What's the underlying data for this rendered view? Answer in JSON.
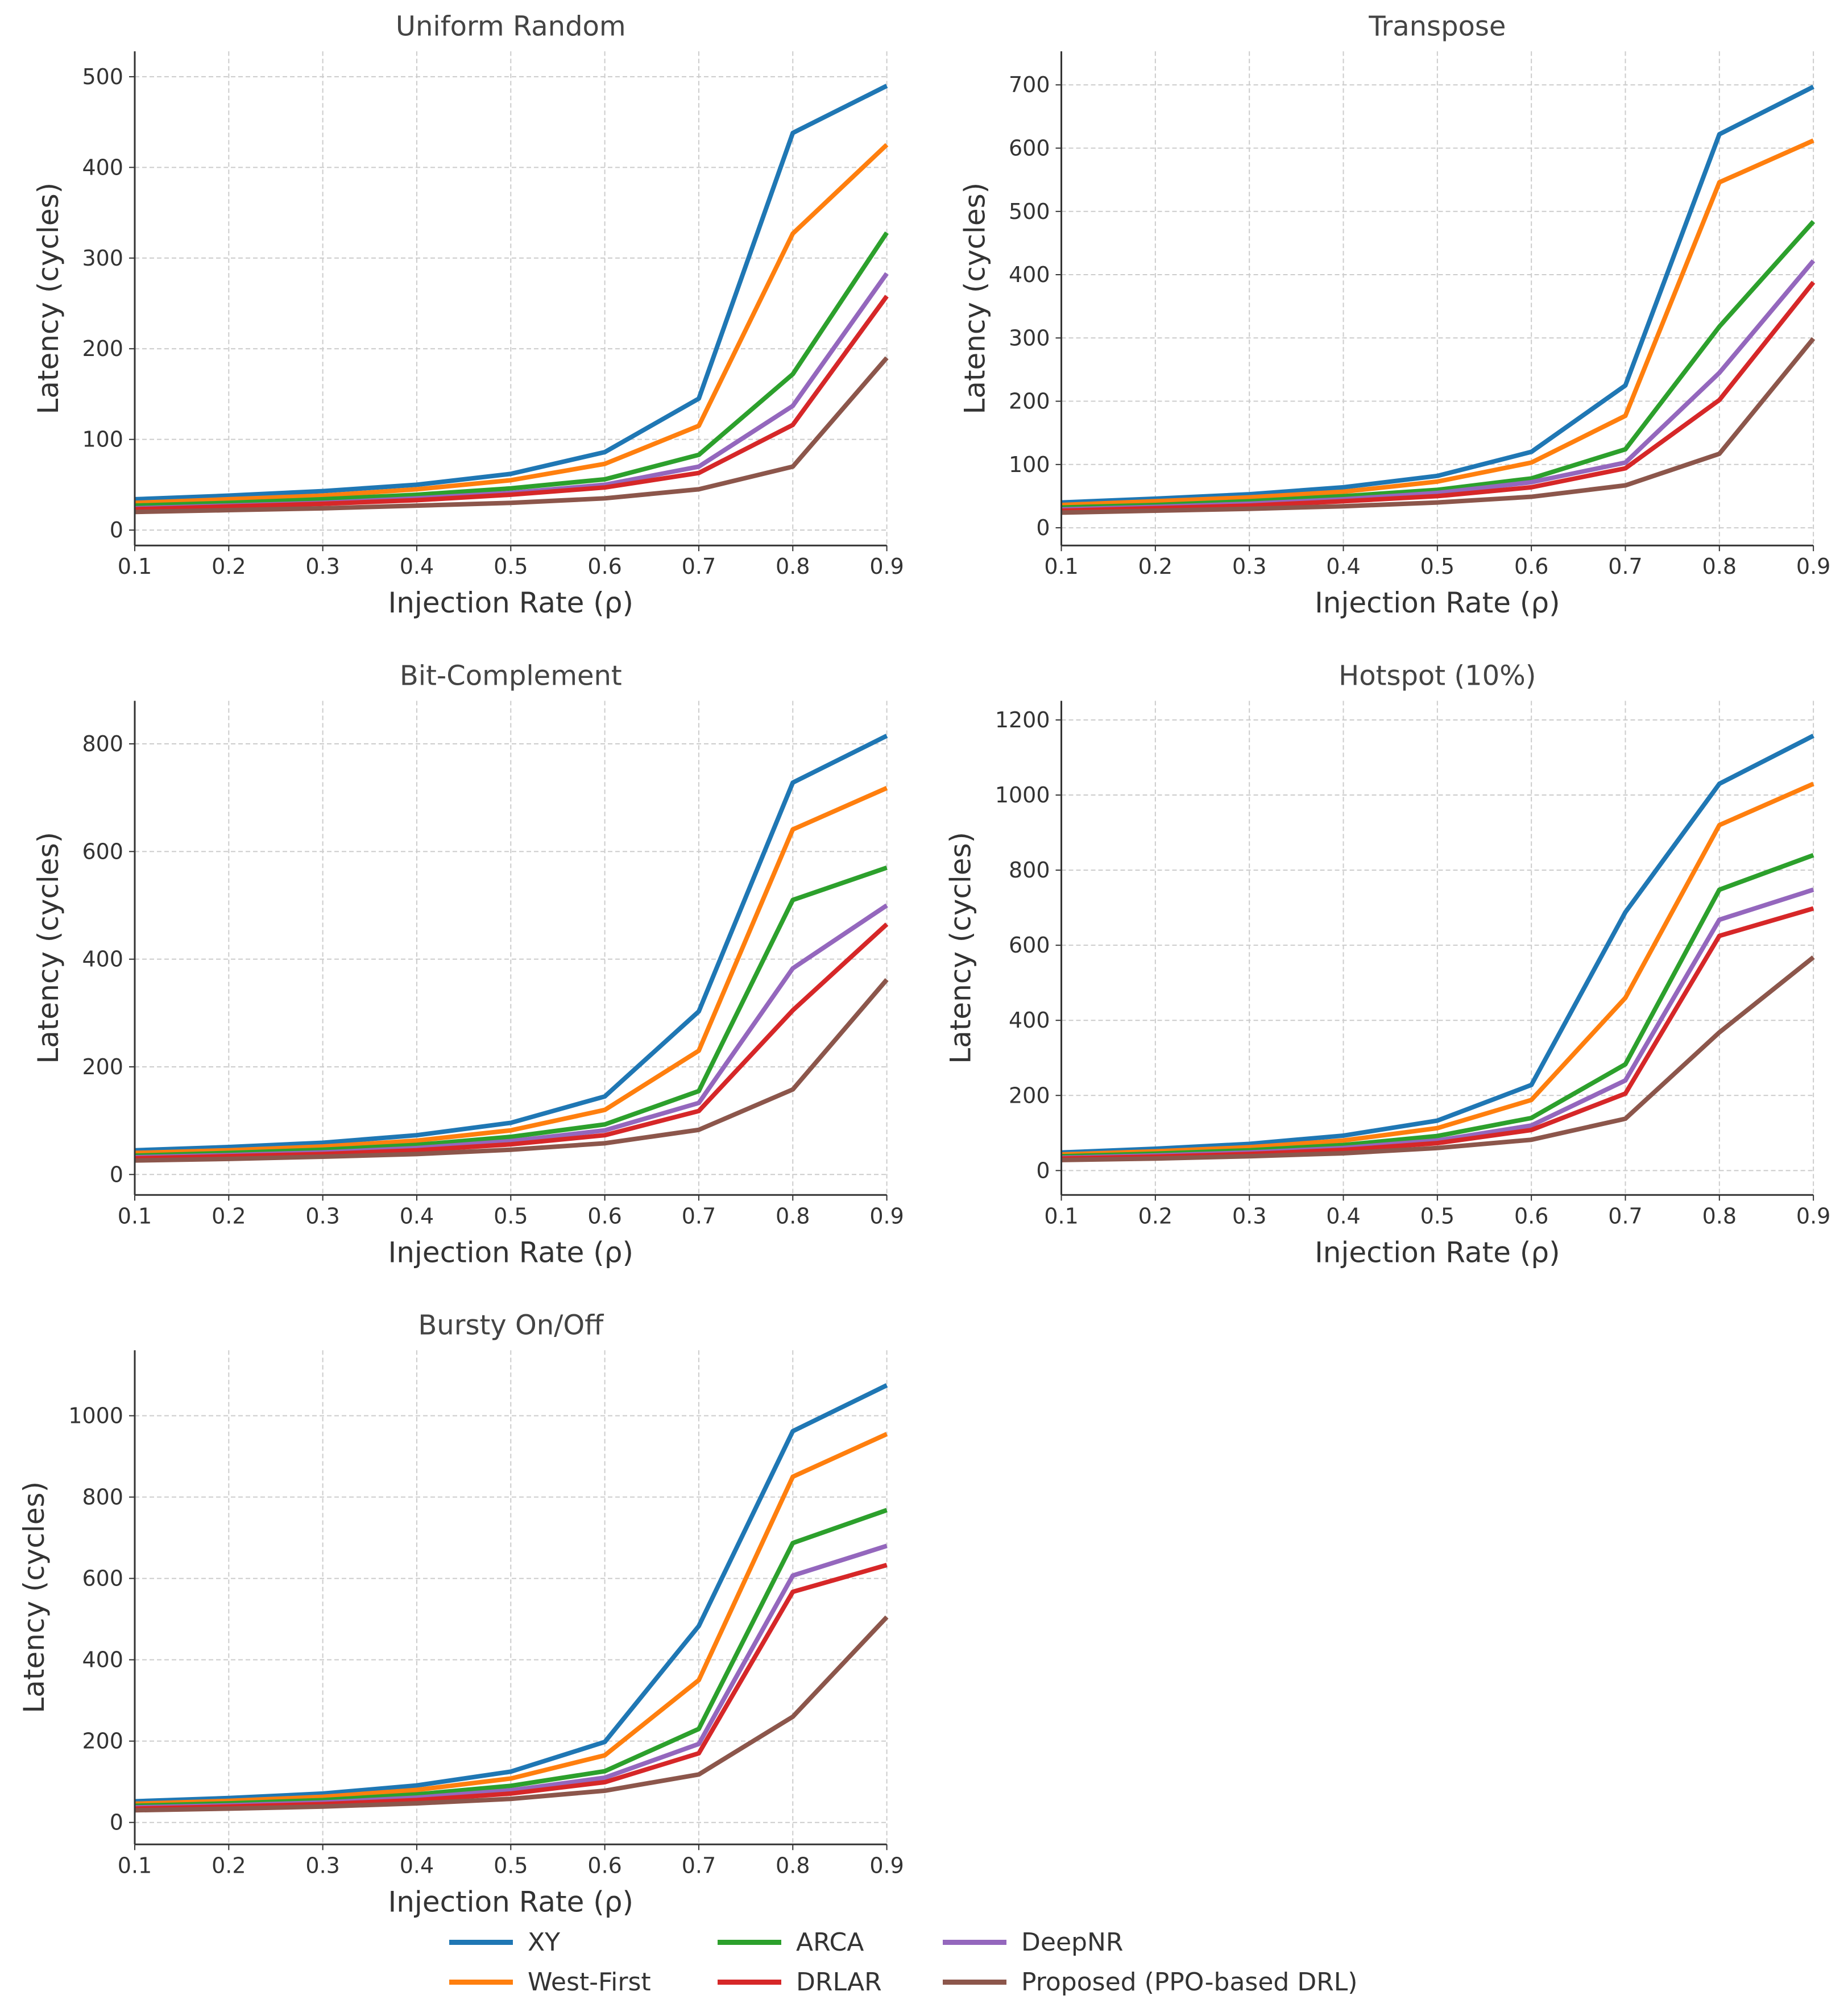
{
  "colors": {
    "XY": "#1f77b4",
    "West-First": "#ff7f0e",
    "ARCA": "#2ca02c",
    "DRLAR": "#d62728",
    "DeepNR": "#9467bd",
    "Proposed (PPO-based DRL)": "#8c564b"
  },
  "legend": [
    "XY",
    "West-First",
    "ARCA",
    "DRLAR",
    "DeepNR",
    "Proposed (PPO-based DRL)"
  ],
  "chart_data": [
    {
      "type": "line",
      "title": "Uniform Random",
      "xlabel": "Injection Rate (ρ)",
      "ylabel": "Latency (cycles)",
      "x": [
        0.1,
        0.2,
        0.3,
        0.4,
        0.5,
        0.6,
        0.7,
        0.8,
        0.9
      ],
      "xlim": [
        0.1,
        0.9
      ],
      "ylim": [
        -17,
        528
      ],
      "yticks": [
        0,
        100,
        200,
        300,
        400,
        500
      ],
      "grid": true,
      "series": [
        {
          "name": "XY",
          "values": [
            34,
            38,
            43,
            50,
            62,
            86,
            145,
            438,
            490
          ]
        },
        {
          "name": "West-First",
          "values": [
            30,
            34,
            38,
            45,
            55,
            73,
            115,
            327,
            425
          ]
        },
        {
          "name": "ARCA",
          "values": [
            27,
            30,
            34,
            39,
            46,
            56,
            83,
            172,
            328
          ]
        },
        {
          "name": "DeepNR",
          "values": [
            24,
            27,
            30,
            35,
            41,
            50,
            70,
            137,
            283
          ]
        },
        {
          "name": "DRLAR",
          "values": [
            23,
            26,
            29,
            33,
            39,
            47,
            63,
            116,
            258
          ]
        },
        {
          "name": "Proposed (PPO-based DRL)",
          "values": [
            20,
            22,
            24,
            27,
            30,
            35,
            45,
            70,
            190
          ]
        }
      ]
    },
    {
      "type": "line",
      "title": "Transpose",
      "xlabel": "Injection Rate (ρ)",
      "ylabel": "Latency (cycles)",
      "x": [
        0.1,
        0.2,
        0.3,
        0.4,
        0.5,
        0.6,
        0.7,
        0.8,
        0.9
      ],
      "xlim": [
        0.1,
        0.9
      ],
      "ylim": [
        -28,
        753
      ],
      "yticks": [
        0,
        100,
        200,
        300,
        400,
        500,
        600,
        700
      ],
      "grid": true,
      "series": [
        {
          "name": "XY",
          "values": [
            40,
            46,
            53,
            64,
            82,
            120,
            225,
            622,
            697
          ]
        },
        {
          "name": "West-First",
          "values": [
            36,
            42,
            48,
            57,
            73,
            103,
            177,
            546,
            612
          ]
        },
        {
          "name": "ARCA",
          "values": [
            32,
            36,
            42,
            50,
            60,
            78,
            124,
            318,
            484
          ]
        },
        {
          "name": "DeepNR",
          "values": [
            29,
            33,
            38,
            45,
            55,
            72,
            103,
            245,
            422
          ]
        },
        {
          "name": "DRLAR",
          "values": [
            27,
            31,
            35,
            42,
            50,
            64,
            94,
            202,
            388
          ]
        },
        {
          "name": "Proposed (PPO-based DRL)",
          "values": [
            24,
            27,
            30,
            34,
            40,
            49,
            67,
            117,
            299
          ]
        }
      ]
    },
    {
      "type": "line",
      "title": "Bit-Complement",
      "xlabel": "Injection Rate (ρ)",
      "ylabel": "Latency (cycles)",
      "x": [
        0.1,
        0.2,
        0.3,
        0.4,
        0.5,
        0.6,
        0.7,
        0.8,
        0.9
      ],
      "xlim": [
        0.1,
        0.9
      ],
      "ylim": [
        -38,
        880
      ],
      "yticks": [
        0,
        200,
        400,
        600,
        800
      ],
      "grid": true,
      "series": [
        {
          "name": "XY",
          "values": [
            45,
            51,
            59,
            73,
            96,
            145,
            303,
            728,
            815
          ]
        },
        {
          "name": "West-First",
          "values": [
            40,
            45,
            52,
            63,
            82,
            120,
            230,
            641,
            718
          ]
        },
        {
          "name": "ARCA",
          "values": [
            35,
            40,
            46,
            55,
            70,
            93,
            155,
            510,
            570
          ]
        },
        {
          "name": "DeepNR",
          "values": [
            32,
            36,
            41,
            49,
            62,
            82,
            133,
            383,
            500
          ]
        },
        {
          "name": "DRLAR",
          "values": [
            30,
            34,
            38,
            45,
            56,
            73,
            118,
            305,
            465
          ]
        },
        {
          "name": "Proposed (PPO-based DRL)",
          "values": [
            26,
            29,
            33,
            38,
            46,
            58,
            83,
            158,
            362
          ]
        }
      ]
    },
    {
      "type": "line",
      "title": "Hotspot (10%)",
      "xlabel": "Injection Rate (ρ)",
      "ylabel": "Latency (cycles)",
      "x": [
        0.1,
        0.2,
        0.3,
        0.4,
        0.5,
        0.6,
        0.7,
        0.8,
        0.9
      ],
      "xlim": [
        0.1,
        0.9
      ],
      "ylim": [
        -65,
        1251
      ],
      "yticks": [
        0,
        200,
        400,
        600,
        800,
        1000,
        1200
      ],
      "grid": true,
      "series": [
        {
          "name": "XY",
          "values": [
            48,
            58,
            71,
            93,
            133,
            228,
            688,
            1030,
            1158
          ]
        },
        {
          "name": "West-First",
          "values": [
            43,
            51,
            62,
            80,
            113,
            188,
            460,
            920,
            1030
          ]
        },
        {
          "name": "ARCA",
          "values": [
            38,
            45,
            54,
            68,
            92,
            140,
            283,
            748,
            840
          ]
        },
        {
          "name": "DeepNR",
          "values": [
            34,
            40,
            48,
            60,
            80,
            120,
            240,
            668,
            748
          ]
        },
        {
          "name": "DRLAR",
          "values": [
            32,
            37,
            44,
            55,
            73,
            108,
            205,
            625,
            698
          ]
        },
        {
          "name": "Proposed (PPO-based DRL)",
          "values": [
            28,
            32,
            38,
            46,
            60,
            82,
            138,
            368,
            568
          ]
        }
      ]
    },
    {
      "type": "line",
      "title": "Bursty On/Off",
      "xlabel": "Injection Rate (ρ)",
      "ylabel": "Latency (cycles)",
      "x": [
        0.1,
        0.2,
        0.3,
        0.4,
        0.5,
        0.6,
        0.7,
        0.8,
        0.9
      ],
      "xlim": [
        0.1,
        0.9
      ],
      "ylim": [
        -54,
        1161
      ],
      "yticks": [
        0,
        200,
        400,
        600,
        800,
        1000
      ],
      "grid": true,
      "series": [
        {
          "name": "XY",
          "values": [
            52,
            60,
            71,
            91,
            125,
            198,
            483,
            962,
            1075
          ]
        },
        {
          "name": "West-First",
          "values": [
            46,
            53,
            63,
            80,
            108,
            165,
            350,
            850,
            955
          ]
        },
        {
          "name": "ARCA",
          "values": [
            41,
            47,
            55,
            69,
            90,
            126,
            230,
            687,
            768
          ]
        },
        {
          "name": "DeepNR",
          "values": [
            37,
            42,
            49,
            61,
            79,
            110,
            193,
            607,
            680
          ]
        },
        {
          "name": "DRLAR",
          "values": [
            34,
            39,
            45,
            55,
            71,
            99,
            170,
            567,
            633
          ]
        },
        {
          "name": "Proposed (PPO-based DRL)",
          "values": [
            30,
            34,
            39,
            47,
            58,
            78,
            118,
            260,
            505
          ]
        }
      ]
    }
  ]
}
